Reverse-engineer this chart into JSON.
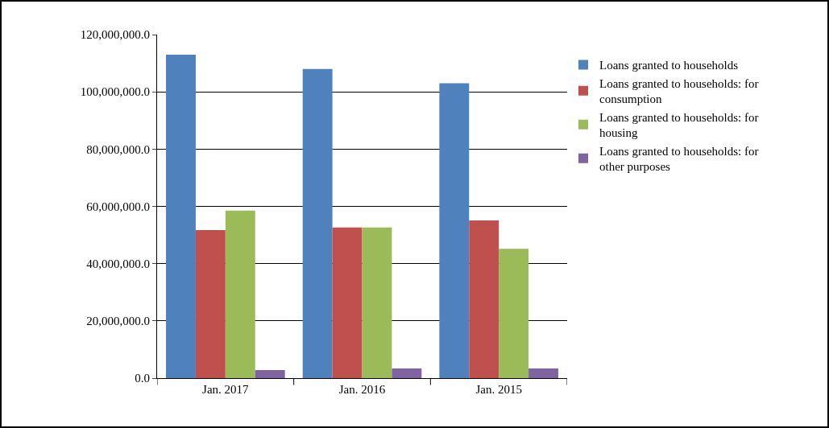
{
  "chart_data": {
    "type": "bar",
    "categories": [
      "Jan. 2017",
      "Jan. 2016",
      "Jan. 2015"
    ],
    "series": [
      {
        "name": "Loans granted to households",
        "color": "#4f81bd",
        "values": [
          113000000,
          108000000,
          103000000
        ]
      },
      {
        "name": "Loans granted to households: for consumption",
        "color": "#c0504d",
        "values": [
          51700000,
          52600000,
          55100000
        ]
      },
      {
        "name": "Loans granted to households: for housing",
        "color": "#9bbb59",
        "values": [
          58500000,
          52600000,
          45200000
        ]
      },
      {
        "name": "Loans granted to households: for other purposes",
        "color": "#8064a2",
        "values": [
          2800000,
          3400000,
          3400000
        ]
      }
    ],
    "ylim": [
      0,
      120000000
    ],
    "yticks": [
      {
        "value": 0,
        "label": "0.0"
      },
      {
        "value": 20000000,
        "label": "20,000,000.0"
      },
      {
        "value": 40000000,
        "label": "40,000,000.0"
      },
      {
        "value": 60000000,
        "label": "60,000,000.0"
      },
      {
        "value": 80000000,
        "label": "80,000,000.0"
      },
      {
        "value": 100000000,
        "label": "100,000,000.0"
      },
      {
        "value": 120000000,
        "label": "120,000,000.0"
      }
    ],
    "grid": "y",
    "legend": "right"
  }
}
